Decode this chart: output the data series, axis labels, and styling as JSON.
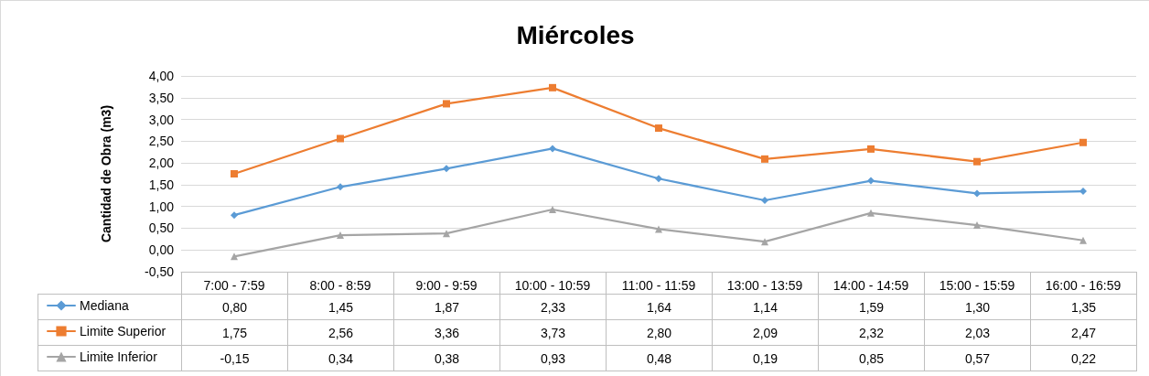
{
  "chart_data": {
    "type": "line",
    "title": "Miércoles",
    "ylabel": "Cantidad de Obra (m3)",
    "categories": [
      "7:00 - 7:59",
      "8:00 - 8:59",
      "9:00 - 9:59",
      "10:00 - 10:59",
      "11:00 - 11:59",
      "13:00 - 13:59",
      "14:00 - 14:59",
      "15:00 - 15:59",
      "16:00 - 16:59"
    ],
    "series": [
      {
        "name": "Mediana",
        "color": "#5b9bd5",
        "marker": "diamond",
        "values": [
          0.8,
          1.45,
          1.87,
          2.33,
          1.64,
          1.14,
          1.59,
          1.3,
          1.35
        ],
        "value_labels": [
          "0,80",
          "1,45",
          "1,87",
          "2,33",
          "1,64",
          "1,14",
          "1,59",
          "1,30",
          "1,35"
        ]
      },
      {
        "name": "Limite Superior",
        "color": "#ed7d31",
        "marker": "square",
        "values": [
          1.75,
          2.56,
          3.36,
          3.73,
          2.8,
          2.09,
          2.32,
          2.03,
          2.47
        ],
        "value_labels": [
          "1,75",
          "2,56",
          "3,36",
          "3,73",
          "2,80",
          "2,09",
          "2,32",
          "2,03",
          "2,47"
        ]
      },
      {
        "name": "Limite Inferior",
        "color": "#a5a5a5",
        "marker": "triangle",
        "values": [
          -0.15,
          0.34,
          0.38,
          0.93,
          0.48,
          0.19,
          0.85,
          0.57,
          0.22
        ],
        "value_labels": [
          "-0,15",
          "0,34",
          "0,38",
          "0,93",
          "0,48",
          "0,19",
          "0,85",
          "0,57",
          "0,22"
        ]
      }
    ],
    "ylim": [
      -0.5,
      4.0
    ],
    "yticks": [
      {
        "value": -0.5,
        "label": "-0,50"
      },
      {
        "value": 0,
        "label": "0,00"
      },
      {
        "value": 0.5,
        "label": "0,50"
      },
      {
        "value": 1,
        "label": "1,00"
      },
      {
        "value": 1.5,
        "label": "1,50"
      },
      {
        "value": 2,
        "label": "2,00"
      },
      {
        "value": 2.5,
        "label": "2,50"
      },
      {
        "value": 3,
        "label": "3,00"
      },
      {
        "value": 3.5,
        "label": "3,50"
      },
      {
        "value": 4,
        "label": "4,00"
      }
    ],
    "grid": "y",
    "legend": "bottom",
    "line_style": "solid"
  }
}
